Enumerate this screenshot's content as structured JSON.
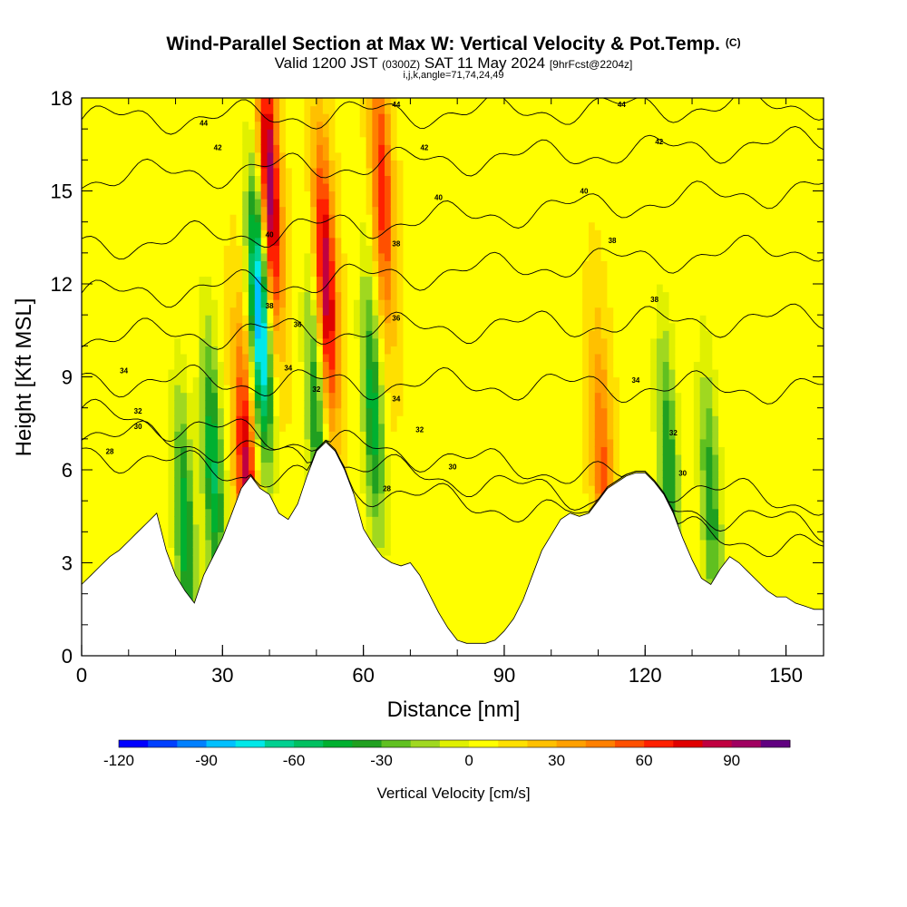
{
  "header": {
    "title": "Wind-Parallel Section at Max W: Vertical Velocity & Pot.Temp.",
    "copyright": "(C)",
    "valid_prefix": "Valid 1200 JST",
    "valid_utc": "(0300Z)",
    "valid_date": "SAT 11 May 2024",
    "forecast": "[9hrFcst@2204z]",
    "indices": "i,j,k,angle=71,74,24,49"
  },
  "chart_data": {
    "type": "heatmap",
    "xlabel": "Distance [nm]",
    "ylabel": "Height [Kft MSL]",
    "xlim": [
      0,
      158
    ],
    "ylim": [
      0,
      18
    ],
    "x_ticks": [
      0,
      30,
      60,
      90,
      120,
      150
    ],
    "y_ticks": [
      0,
      3,
      6,
      9,
      12,
      15,
      18
    ],
    "x_tick_labels": [
      "0",
      "30",
      "60",
      "90",
      "120",
      "150"
    ],
    "y_tick_labels": [
      "0",
      "3",
      "6",
      "9",
      "12",
      "15",
      "18"
    ],
    "colorbar": {
      "label": "Vertical Velocity [cm/s]",
      "min": -120,
      "max": 100,
      "step": 10,
      "tick_values": [
        -120,
        -90,
        -60,
        -30,
        0,
        30,
        60,
        90
      ],
      "tick_labels": [
        "-120",
        "-90",
        "-60",
        "-30",
        "0",
        "30",
        "60",
        "90"
      ],
      "colors": [
        "#0000ff",
        "#0040ff",
        "#0080ff",
        "#00c0ff",
        "#00e8e8",
        "#00d090",
        "#00c060",
        "#00b030",
        "#20a020",
        "#60c020",
        "#a0d820",
        "#e0f000",
        "#ffff00",
        "#ffe000",
        "#ffc000",
        "#ffa000",
        "#ff8000",
        "#ff5000",
        "#ff2000",
        "#e00000",
        "#c00040",
        "#a00060",
        "#600080"
      ]
    },
    "terrain": {
      "x": [
        0,
        2,
        4,
        6,
        8,
        10,
        12,
        14,
        16,
        18,
        20,
        22,
        24,
        26,
        28,
        30,
        32,
        34,
        36,
        38,
        40,
        42,
        44,
        46,
        48,
        50,
        52,
        54,
        56,
        58,
        60,
        62,
        64,
        66,
        68,
        70,
        72,
        74,
        76,
        78,
        80,
        82,
        84,
        86,
        88,
        90,
        92,
        94,
        96,
        98,
        100,
        102,
        104,
        106,
        108,
        110,
        112,
        114,
        116,
        118,
        120,
        122,
        124,
        126,
        128,
        130,
        132,
        134,
        136,
        138,
        140,
        142,
        144,
        146,
        148,
        150,
        152,
        154,
        156,
        158
      ],
      "height_kft": [
        2.3,
        2.6,
        2.9,
        3.2,
        3.4,
        3.7,
        4.0,
        4.3,
        4.6,
        3.4,
        2.6,
        2.1,
        1.7,
        2.6,
        3.2,
        3.8,
        4.6,
        5.4,
        5.8,
        5.4,
        5.2,
        4.6,
        4.4,
        4.9,
        5.8,
        6.6,
        6.9,
        6.6,
        6.0,
        5.2,
        4.1,
        3.6,
        3.2,
        3.0,
        2.9,
        3.0,
        2.6,
        2.0,
        1.4,
        0.9,
        0.5,
        0.4,
        0.4,
        0.4,
        0.5,
        0.8,
        1.2,
        1.8,
        2.6,
        3.4,
        3.9,
        4.4,
        4.6,
        4.5,
        4.6,
        5.0,
        5.4,
        5.6,
        5.8,
        5.9,
        5.9,
        5.6,
        5.2,
        4.6,
        3.8,
        3.1,
        2.5,
        2.3,
        2.8,
        3.2,
        3.0,
        2.7,
        2.4,
        2.1,
        1.9,
        1.9,
        1.7,
        1.6,
        1.5,
        1.5
      ]
    },
    "w_features": [
      {
        "x": 40,
        "z": 15,
        "w": 95
      },
      {
        "x": 38,
        "z": 11,
        "w": -105
      },
      {
        "x": 52,
        "z": 12,
        "w": 85
      },
      {
        "x": 50,
        "z": 8,
        "w": -50
      },
      {
        "x": 62,
        "z": 8,
        "w": -55
      },
      {
        "x": 64,
        "z": 15,
        "w": 60
      },
      {
        "x": 22,
        "z": 4,
        "w": -55
      },
      {
        "x": 28,
        "z": 6,
        "w": -60
      },
      {
        "x": 35,
        "z": 6,
        "w": 75
      },
      {
        "x": 125,
        "z": 6,
        "w": -50
      },
      {
        "x": 111,
        "z": 6,
        "w": 45
      },
      {
        "x": 134,
        "z": 5,
        "w": -45
      }
    ],
    "isentropes": [
      {
        "theta": 28,
        "z_left": 6.6,
        "z_right": 3.4
      },
      {
        "theta": 30,
        "z_left": 7.3,
        "z_right": 4.1
      },
      {
        "theta": 32,
        "z_left": 7.8,
        "z_right": 4.9
      },
      {
        "theta": 34,
        "z_left": 8.9,
        "z_right": 8.6
      },
      {
        "theta": 36,
        "z_left": 10.3,
        "z_right": 10.9
      },
      {
        "theta": 38,
        "z_left": 11.6,
        "z_right": 13.2
      },
      {
        "theta": 40,
        "z_left": 13.2,
        "z_right": 15.1
      },
      {
        "theta": 42,
        "z_left": 15.4,
        "z_right": 16.6
      },
      {
        "theta": 44,
        "z_left": 17.3,
        "z_right": 17.8
      }
    ],
    "contour_labels": [
      {
        "text": "44",
        "x": 26,
        "z": 17.2
      },
      {
        "text": "42",
        "x": 29,
        "z": 16.4
      },
      {
        "text": "44",
        "x": 67,
        "z": 17.8
      },
      {
        "text": "44",
        "x": 115,
        "z": 17.8
      },
      {
        "text": "42",
        "x": 73,
        "z": 16.4
      },
      {
        "text": "42",
        "x": 123,
        "z": 16.6
      },
      {
        "text": "40",
        "x": 76,
        "z": 14.8
      },
      {
        "text": "40",
        "x": 107,
        "z": 15.0
      },
      {
        "text": "40",
        "x": 40,
        "z": 13.6
      },
      {
        "text": "38",
        "x": 67,
        "z": 13.3
      },
      {
        "text": "38",
        "x": 113,
        "z": 13.4
      },
      {
        "text": "38",
        "x": 40,
        "z": 11.3
      },
      {
        "text": "38",
        "x": 122,
        "z": 11.5
      },
      {
        "text": "36",
        "x": 46,
        "z": 10.7
      },
      {
        "text": "36",
        "x": 67,
        "z": 10.9
      },
      {
        "text": "34",
        "x": 9,
        "z": 9.2
      },
      {
        "text": "34",
        "x": 44,
        "z": 9.3
      },
      {
        "text": "34",
        "x": 67,
        "z": 8.3
      },
      {
        "text": "34",
        "x": 118,
        "z": 8.9
      },
      {
        "text": "32",
        "x": 50,
        "z": 8.6
      },
      {
        "text": "32",
        "x": 12,
        "z": 7.9
      },
      {
        "text": "32",
        "x": 72,
        "z": 7.3
      },
      {
        "text": "32",
        "x": 126,
        "z": 7.2
      },
      {
        "text": "30",
        "x": 12,
        "z": 7.4
      },
      {
        "text": "30",
        "x": 79,
        "z": 6.1
      },
      {
        "text": "30",
        "x": 128,
        "z": 5.9
      },
      {
        "text": "28",
        "x": 6,
        "z": 6.6
      },
      {
        "text": "28",
        "x": 65,
        "z": 5.4
      }
    ]
  }
}
